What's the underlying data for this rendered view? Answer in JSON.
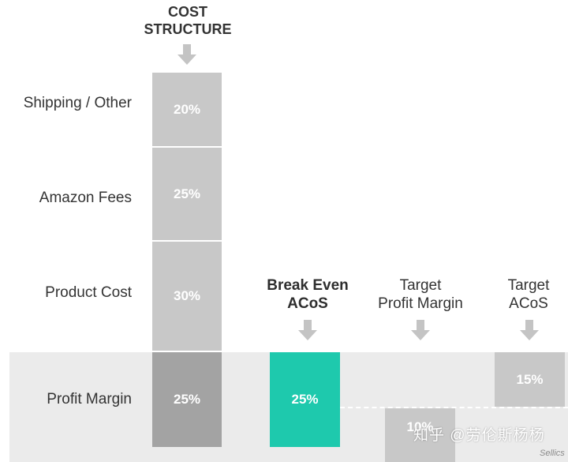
{
  "header": {
    "line1": "COST",
    "line2": "STRUCTURE"
  },
  "rows": {
    "shipping": "Shipping / Other",
    "amazon_fees": "Amazon Fees",
    "product_cost": "Product Cost",
    "profit_margin": "Profit Margin"
  },
  "cost_structure": {
    "shipping": "20%",
    "amazon_fees": "25%",
    "product_cost": "30%",
    "profit_margin": "25%"
  },
  "columns": {
    "break_even": {
      "line1": "Break Even",
      "line2": "ACoS",
      "value": "25%"
    },
    "target_profit": {
      "line1": "Target",
      "line2": "Profit Margin",
      "value": "10%"
    },
    "target_acos": {
      "line1": "Target",
      "line2": "ACoS",
      "value": "15%"
    }
  },
  "watermark": "知乎 @劳伦斯杨杨",
  "credit": "Sellics",
  "colors": {
    "accent": "#1ec9ad",
    "block_light": "#c8c8c8",
    "block_dark": "#a3a3a3",
    "band": "#ebebeb",
    "arrow": "#c4c4c4"
  }
}
